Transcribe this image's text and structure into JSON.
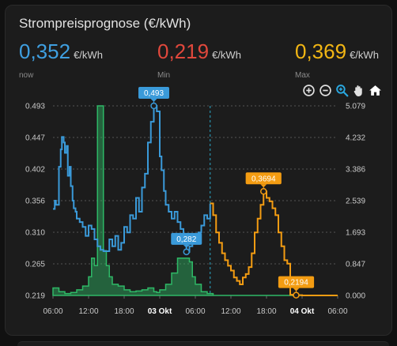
{
  "card": {
    "title": "Strompreisprognose (€/kWh)",
    "stats": {
      "now": {
        "value": "0,352",
        "unit": "€/kWh",
        "label": "now",
        "color": "#3f9fe0"
      },
      "min": {
        "value": "0,219",
        "unit": "€/kWh",
        "label": "Min",
        "color": "#e0483c"
      },
      "max": {
        "value": "0,369",
        "unit": "€/kWh",
        "label": "Max",
        "color": "#f2b614"
      }
    },
    "toolbar": [
      "zoom-in-icon",
      "zoom-out-icon",
      "zoom-select-icon",
      "pan-hand-icon",
      "reset-home-icon"
    ]
  },
  "chart_data": {
    "type": "line",
    "title": "",
    "colors": {
      "price_history": "#3a9ad9",
      "price_forecast": "#f39c12",
      "volume": "#2eb866"
    },
    "xlabel": "",
    "ylabel": "",
    "x_ticks": [
      "06:00",
      "12:00",
      "18:00",
      "03 Okt",
      "06:00",
      "12:00",
      "18:00",
      "04 Okt",
      "06:00"
    ],
    "x_range_hours": [
      0,
      48
    ],
    "now_hour": 26.5,
    "y_left": {
      "ticks": [
        "0.493",
        "0.447",
        "0.402",
        "0.356",
        "0.310",
        "0.265",
        "0.219"
      ],
      "min": 0.219,
      "max": 0.493
    },
    "y_right": {
      "ticks": [
        "5.079",
        "4.232",
        "3.386",
        "2.539",
        "1.693",
        "0.847",
        "0.000"
      ],
      "min": 0,
      "max": 5.079
    },
    "grid": true,
    "series": [
      {
        "axis": "left",
        "x": [
          0,
          0.3,
          0.5,
          1,
          1.3,
          1.5,
          1.8,
          2,
          2.3,
          2.5,
          2.8,
          3,
          3.3,
          3.5,
          3.8,
          4,
          4.5,
          5,
          5.5,
          6,
          6.5,
          7,
          7.5,
          8,
          8.5,
          9,
          9.5,
          10,
          10.5,
          11,
          11.5,
          12,
          12.5,
          13,
          13.5,
          14,
          14.5,
          15,
          15.5,
          16,
          16.5,
          17,
          17.5,
          18,
          18.3,
          18.7,
          19,
          19.5,
          20,
          20.5,
          21,
          21.5,
          22,
          22.5,
          23,
          23.5,
          24,
          24.5,
          25,
          25.5,
          26,
          26.5
        ],
        "values": [
          0.344,
          0.356,
          0.35,
          0.405,
          0.43,
          0.448,
          0.44,
          0.425,
          0.435,
          0.392,
          0.405,
          0.377,
          0.356,
          0.345,
          0.34,
          0.33,
          0.325,
          0.318,
          0.305,
          0.32,
          0.315,
          0.3,
          0.29,
          0.285,
          0.283,
          0.283,
          0.3,
          0.29,
          0.305,
          0.285,
          0.295,
          0.318,
          0.31,
          0.335,
          0.33,
          0.36,
          0.34,
          0.375,
          0.395,
          0.44,
          0.47,
          0.493,
          0.485,
          0.42,
          0.4,
          0.37,
          0.35,
          0.34,
          0.33,
          0.34,
          0.325,
          0.315,
          0.3,
          0.282,
          0.29,
          0.3,
          0.295,
          0.31,
          0.32,
          0.335,
          0.33,
          0.352
        ]
      },
      {
        "axis": "left",
        "x": [
          26.5,
          27,
          27.5,
          28,
          28.5,
          29,
          29.5,
          30,
          30.5,
          31,
          31.5,
          32,
          32.5,
          33,
          33.5,
          34,
          34.5,
          35,
          35.5,
          36,
          36.5,
          37,
          37.5,
          38,
          38.5,
          39,
          39.5,
          40,
          40.5,
          41,
          41.5,
          42,
          42.5,
          43,
          43.5,
          44,
          45,
          46,
          47,
          48
        ],
        "values": [
          0.352,
          0.335,
          0.31,
          0.295,
          0.28,
          0.27,
          0.262,
          0.255,
          0.245,
          0.24,
          0.235,
          0.245,
          0.25,
          0.26,
          0.28,
          0.31,
          0.33,
          0.35,
          0.3694,
          0.36,
          0.355,
          0.345,
          0.335,
          0.31,
          0.29,
          0.27,
          0.265,
          0.22,
          0.219,
          0.2194,
          0.2194,
          0.219,
          0.219,
          0.219,
          0.219,
          0.219,
          0.219,
          0.219,
          0.219,
          0.219
        ]
      },
      {
        "axis": "right",
        "x": [
          0,
          1,
          2,
          3,
          4,
          5,
          6,
          6.5,
          7,
          7.5,
          8,
          8.5,
          9,
          9.5,
          10,
          11,
          12,
          13,
          14,
          15,
          16,
          17,
          17.5,
          18,
          19,
          20,
          21,
          22,
          23,
          23.5,
          24,
          25,
          26,
          27,
          28,
          30,
          32,
          34,
          36,
          38,
          40,
          42,
          44,
          46,
          48
        ],
        "values": [
          0.2,
          0.1,
          0.05,
          0.08,
          0.15,
          0.25,
          0.5,
          1.0,
          0.8,
          5.079,
          5.079,
          1.2,
          0.8,
          0.5,
          0.3,
          0.25,
          0.15,
          0.1,
          0.12,
          0.15,
          0.2,
          0.1,
          0.08,
          0.15,
          0.3,
          0.6,
          1.0,
          1.0,
          0.9,
          0.5,
          0.3,
          0.1,
          0.05,
          0.0,
          0.0,
          0.0,
          0.0,
          0.0,
          0.0,
          0.0,
          0.0,
          0.0,
          0.0,
          0.0,
          0.0
        ]
      }
    ],
    "markers": [
      {
        "series": 0,
        "x": 17,
        "y": 0.493,
        "label": "0,493",
        "color": "#3a9ad9"
      },
      {
        "series": 0,
        "x": 22.5,
        "y": 0.282,
        "label": "0,282",
        "color": "#3a9ad9"
      },
      {
        "series": 1,
        "x": 35.5,
        "y": 0.3694,
        "label": "0,3694",
        "color": "#f39c12"
      },
      {
        "series": 1,
        "x": 41,
        "y": 0.2194,
        "label": "0,2194",
        "color": "#f39c12"
      }
    ]
  }
}
